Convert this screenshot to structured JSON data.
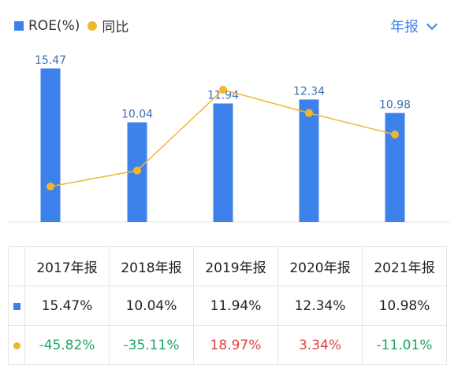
{
  "legend": {
    "series1": "ROE(%)",
    "series2": "同比"
  },
  "period_selector": {
    "label": "年报"
  },
  "colors": {
    "bar": "#3d82ea",
    "line": "#f2b530",
    "positive": "#e0433a",
    "negative": "#1fa463"
  },
  "chart_data": {
    "type": "bar",
    "categories": [
      "2017年报",
      "2018年报",
      "2019年报",
      "2020年报",
      "2021年报"
    ],
    "series": [
      {
        "name": "ROE(%)",
        "type": "bar",
        "values": [
          15.47,
          10.04,
          11.94,
          12.34,
          10.98
        ],
        "labels": [
          "15.47",
          "10.04",
          "11.94",
          "12.34",
          "10.98"
        ]
      },
      {
        "name": "同比",
        "type": "line",
        "values": [
          -45.82,
          -35.11,
          18.97,
          3.34,
          -11.01
        ]
      }
    ],
    "grid": false
  },
  "table": {
    "headers": [
      "2017年报",
      "2018年报",
      "2019年报",
      "2020年报",
      "2021年报"
    ],
    "roe_row": [
      "15.47%",
      "10.04%",
      "11.94%",
      "12.34%",
      "10.98%"
    ],
    "yoy_row": [
      "-45.82%",
      "-35.11%",
      "18.97%",
      "3.34%",
      "-11.01%"
    ]
  }
}
